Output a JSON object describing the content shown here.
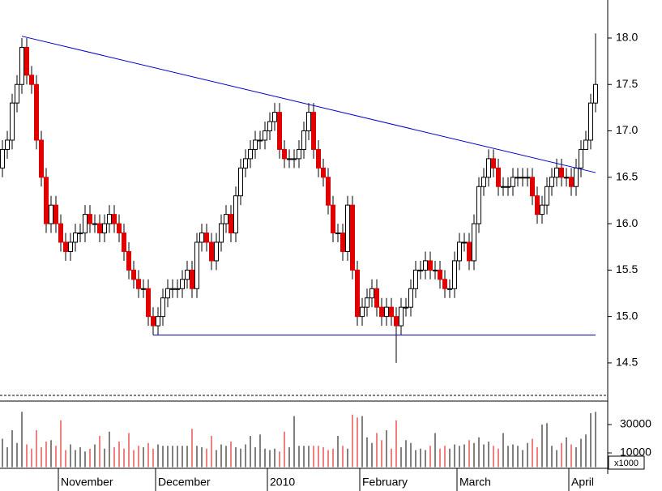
{
  "chart_data": {
    "type": "candlestick",
    "categories": [
      null,
      null,
      null,
      null,
      null,
      null,
      null,
      null,
      null,
      null,
      null,
      null,
      "November",
      null,
      null,
      null,
      null,
      null,
      null,
      null,
      null,
      null,
      null,
      null,
      null,
      null,
      null,
      null,
      null,
      null,
      null,
      null,
      "December",
      null,
      null,
      null,
      null,
      null,
      null,
      null,
      null,
      null,
      null,
      null,
      null,
      null,
      null,
      null,
      null,
      null,
      null,
      null,
      null,
      null,
      null,
      "2010",
      null,
      null,
      null,
      null,
      null,
      null,
      null,
      null,
      null,
      null,
      null,
      null,
      null,
      null,
      null,
      null,
      null,
      null,
      "February",
      null,
      null,
      null,
      null,
      null,
      null,
      null,
      null,
      null,
      null,
      null,
      null,
      null,
      null,
      null,
      null,
      null,
      null,
      null,
      "March",
      null,
      null,
      null,
      null,
      null,
      null,
      null,
      null,
      null,
      null,
      null,
      null,
      null,
      null,
      null,
      null,
      null,
      null,
      null,
      null,
      null,
      null,
      "April",
      null,
      null,
      null,
      null,
      null
    ],
    "open": [
      16.6,
      16.8,
      16.9,
      17.3,
      17.5,
      17.9,
      17.6,
      17.5,
      16.9,
      16.5,
      16.0,
      16.2,
      16.0,
      15.8,
      15.7,
      15.8,
      15.9,
      15.9,
      16.1,
      16.0,
      16.0,
      15.9,
      16.0,
      16.1,
      16.0,
      15.9,
      15.7,
      15.5,
      15.4,
      15.3,
      15.3,
      15.0,
      14.9,
      15.0,
      15.2,
      15.3,
      15.3,
      15.3,
      15.4,
      15.5,
      15.3,
      15.8,
      15.9,
      15.8,
      15.6,
      15.8,
      16.0,
      16.1,
      15.9,
      16.3,
      16.6,
      16.7,
      16.8,
      16.9,
      16.9,
      17.0,
      17.1,
      17.2,
      16.8,
      16.7,
      16.7,
      16.7,
      16.8,
      17.0,
      17.2,
      16.8,
      16.6,
      16.5,
      16.2,
      15.9,
      15.9,
      15.7,
      16.2,
      15.5,
      15.0,
      15.1,
      15.2,
      15.3,
      15.1,
      15.0,
      15.1,
      15.0,
      14.9,
      15.1,
      15.1,
      15.3,
      15.5,
      15.5,
      15.6,
      15.5,
      15.5,
      15.4,
      15.3,
      15.3,
      15.6,
      15.8,
      15.8,
      15.6,
      16.0,
      16.4,
      16.5,
      16.7,
      16.6,
      16.4,
      16.4,
      16.4,
      16.5,
      16.5,
      16.5,
      16.5,
      16.3,
      16.1,
      16.2,
      16.4,
      16.5,
      16.6,
      16.5,
      16.5,
      16.4,
      16.6,
      16.8,
      16.9,
      17.3
    ],
    "high": [
      16.9,
      17.0,
      17.4,
      17.6,
      18.0,
      18.0,
      17.7,
      17.6,
      17.0,
      16.6,
      16.3,
      16.3,
      16.1,
      15.9,
      15.9,
      16.0,
      16.0,
      16.2,
      16.2,
      16.1,
      16.1,
      16.1,
      16.2,
      16.2,
      16.1,
      16.0,
      15.8,
      15.6,
      15.5,
      15.4,
      15.4,
      15.1,
      15.1,
      15.3,
      15.4,
      15.4,
      15.4,
      15.5,
      15.6,
      15.6,
      15.9,
      16.0,
      16.0,
      15.9,
      15.9,
      16.1,
      16.2,
      16.2,
      16.4,
      16.7,
      16.8,
      16.9,
      17.0,
      17.0,
      17.1,
      17.2,
      17.3,
      17.3,
      16.9,
      16.8,
      16.8,
      16.9,
      17.1,
      17.3,
      17.3,
      16.9,
      16.7,
      16.6,
      16.3,
      16.0,
      16.0,
      16.3,
      16.3,
      15.6,
      15.2,
      15.3,
      15.4,
      15.4,
      15.2,
      15.2,
      15.2,
      15.1,
      15.2,
      15.2,
      15.4,
      15.6,
      15.6,
      15.7,
      15.7,
      15.6,
      15.6,
      15.5,
      15.4,
      15.7,
      15.9,
      15.9,
      15.9,
      16.1,
      16.5,
      16.6,
      16.8,
      16.8,
      16.7,
      16.5,
      16.5,
      16.6,
      16.6,
      16.6,
      16.6,
      16.6,
      16.4,
      16.3,
      16.5,
      16.6,
      16.7,
      16.7,
      16.6,
      16.6,
      16.7,
      16.9,
      17.0,
      17.4,
      18.05
    ],
    "low": [
      16.5,
      16.7,
      16.8,
      17.2,
      17.4,
      17.5,
      17.4,
      16.8,
      16.4,
      15.9,
      15.9,
      15.9,
      15.7,
      15.6,
      15.6,
      15.7,
      15.8,
      15.8,
      15.9,
      15.9,
      15.8,
      15.8,
      15.9,
      15.9,
      15.8,
      15.6,
      15.4,
      15.3,
      15.2,
      15.2,
      14.9,
      14.8,
      14.8,
      14.9,
      15.1,
      15.2,
      15.2,
      15.2,
      15.3,
      15.2,
      15.2,
      15.7,
      15.7,
      15.5,
      15.5,
      15.7,
      15.9,
      15.8,
      15.8,
      16.2,
      16.5,
      16.6,
      16.7,
      16.8,
      16.8,
      16.9,
      17.0,
      16.7,
      16.6,
      16.6,
      16.6,
      16.6,
      16.7,
      16.9,
      16.7,
      16.5,
      16.4,
      16.1,
      15.8,
      15.8,
      15.6,
      15.6,
      15.4,
      14.9,
      14.9,
      15.0,
      15.1,
      15.0,
      14.9,
      14.9,
      14.9,
      14.5,
      14.8,
      15.0,
      15.0,
      15.2,
      15.4,
      15.4,
      15.4,
      15.4,
      15.3,
      15.2,
      15.2,
      15.2,
      15.5,
      15.7,
      15.5,
      15.5,
      15.9,
      16.3,
      16.4,
      16.5,
      16.3,
      16.3,
      16.3,
      16.3,
      16.4,
      16.4,
      16.4,
      16.2,
      16.0,
      16.0,
      16.1,
      16.3,
      16.4,
      16.4,
      16.4,
      16.3,
      16.3,
      16.5,
      16.8,
      16.8,
      17.2
    ],
    "close": [
      16.8,
      16.9,
      17.3,
      17.5,
      17.9,
      17.6,
      17.5,
      16.9,
      16.5,
      16.0,
      16.2,
      16.0,
      15.8,
      15.7,
      15.8,
      15.9,
      15.9,
      16.1,
      16.0,
      16.0,
      15.9,
      16.0,
      16.1,
      16.0,
      15.9,
      15.7,
      15.5,
      15.4,
      15.3,
      15.3,
      15.0,
      14.9,
      15.0,
      15.2,
      15.3,
      15.3,
      15.3,
      15.4,
      15.5,
      15.3,
      15.8,
      15.9,
      15.8,
      15.6,
      15.8,
      16.0,
      16.1,
      15.9,
      16.3,
      16.6,
      16.7,
      16.8,
      16.9,
      16.9,
      17.0,
      17.1,
      17.2,
      16.8,
      16.7,
      16.7,
      16.7,
      16.8,
      17.0,
      17.2,
      16.8,
      16.6,
      16.5,
      16.2,
      15.9,
      15.9,
      15.7,
      16.2,
      15.5,
      15.0,
      15.1,
      15.2,
      15.3,
      15.1,
      15.0,
      15.1,
      15.0,
      14.9,
      15.1,
      15.1,
      15.3,
      15.5,
      15.5,
      15.6,
      15.5,
      15.5,
      15.4,
      15.3,
      15.3,
      15.6,
      15.8,
      15.8,
      15.6,
      16.0,
      16.4,
      16.5,
      16.7,
      16.6,
      16.4,
      16.4,
      16.4,
      16.5,
      16.5,
      16.5,
      16.5,
      16.3,
      16.1,
      16.2,
      16.4,
      16.5,
      16.6,
      16.5,
      16.5,
      16.4,
      16.6,
      16.8,
      16.9,
      17.3,
      17.5
    ],
    "volume": [
      20000,
      14000,
      26000,
      17000,
      39000,
      16000,
      13000,
      26000,
      14000,
      18000,
      19000,
      15000,
      33000,
      12000,
      16000,
      12000,
      14000,
      11000,
      13000,
      16000,
      22000,
      13000,
      25000,
      14000,
      18000,
      13000,
      24000,
      12000,
      15000,
      14000,
      17000,
      13000,
      16000,
      15000,
      15000,
      15000,
      15000,
      15000,
      15000,
      27000,
      15000,
      14000,
      13000,
      22000,
      12000,
      16000,
      15000,
      18000,
      14000,
      13000,
      16000,
      22000,
      14000,
      23000,
      13000,
      12000,
      13000,
      11000,
      25000,
      14000,
      36000,
      15000,
      15000,
      15000,
      15000,
      15000,
      14000,
      12000,
      13000,
      22000,
      15000,
      13000,
      37000,
      35000,
      36000,
      21000,
      17000,
      24000,
      19000,
      26000,
      13000,
      33000,
      14000,
      19000,
      17000,
      12000,
      13000,
      12000,
      15000,
      24000,
      13000,
      15000,
      13000,
      16000,
      15000,
      16000,
      19000,
      17000,
      21000,
      16000,
      18000,
      15000,
      13000,
      24000,
      15000,
      16000,
      15000,
      12000,
      17000,
      20000,
      14000,
      30000,
      31000,
      15000,
      12000,
      17000,
      21000,
      16000,
      14000,
      20000,
      23000,
      38000,
      39000
    ],
    "up_color": "#ffffff",
    "down_color": "#e00000",
    "wick_color": "#000000",
    "ylim": [
      14.15,
      18.41
    ],
    "yticks": [
      14.5,
      {
        "value": 15,
        "label": "15.0"
      },
      15.5,
      {
        "value": 16,
        "label": "16.0"
      },
      16.5,
      {
        "value": 17,
        "label": "17.0"
      },
      17.5,
      {
        "value": 18,
        "label": "18.0"
      }
    ],
    "volume_ylim": [
      0,
      45400
    ],
    "volume_yticks": [
      10000,
      30000
    ],
    "volume_unit_label": "x1000",
    "lines": [
      {
        "x": [
          4,
          122
        ],
        "y": [
          18.02,
          16.55
        ],
        "color": "#0000cc"
      },
      {
        "x": [
          31,
          122
        ],
        "y": [
          14.8,
          14.8
        ],
        "color": "#0000cc"
      }
    ]
  }
}
